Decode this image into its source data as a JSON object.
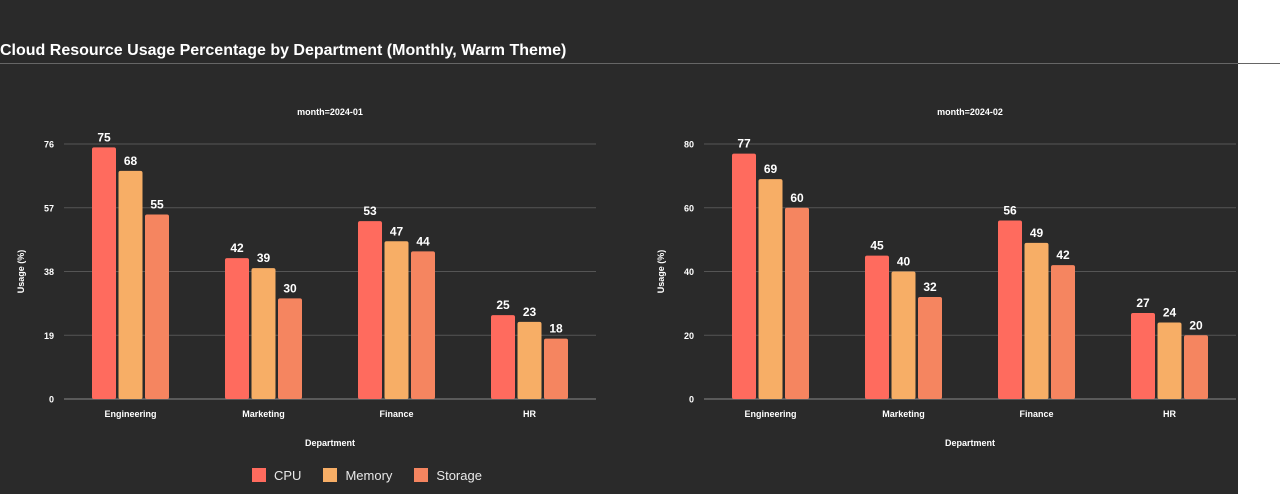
{
  "title": "Cloud Resource Usage Percentage by Department (Monthly, Warm Theme)",
  "chart_data": [
    {
      "type": "bar",
      "panel_title": "month=2024-01",
      "xlabel": "Department",
      "ylabel": "Usage (%)",
      "categories": [
        "Engineering",
        "Marketing",
        "Finance",
        "HR"
      ],
      "ylim": [
        0,
        76
      ],
      "yticks": [
        0,
        19,
        38,
        57,
        76
      ],
      "series": [
        {
          "name": "CPU",
          "color": "#ff6b5e",
          "values": [
            75,
            42,
            53,
            25
          ]
        },
        {
          "name": "Memory",
          "color": "#f7ae66",
          "values": [
            68,
            39,
            47,
            23
          ]
        },
        {
          "name": "Storage",
          "color": "#f58560",
          "values": [
            55,
            30,
            44,
            18
          ]
        }
      ]
    },
    {
      "type": "bar",
      "panel_title": "month=2024-02",
      "xlabel": "Department",
      "ylabel": "Usage (%)",
      "categories": [
        "Engineering",
        "Marketing",
        "Finance",
        "HR"
      ],
      "ylim": [
        0,
        80
      ],
      "yticks": [
        0,
        20,
        40,
        60,
        80
      ],
      "series": [
        {
          "name": "CPU",
          "color": "#ff6b5e",
          "values": [
            77,
            45,
            56,
            27
          ]
        },
        {
          "name": "Memory",
          "color": "#f7ae66",
          "values": [
            69,
            40,
            49,
            24
          ]
        },
        {
          "name": "Storage",
          "color": "#f58560",
          "values": [
            60,
            32,
            42,
            20
          ]
        }
      ]
    }
  ],
  "legend": {
    "position": "bottom",
    "items": [
      {
        "label": "CPU",
        "color": "#ff6b5e"
      },
      {
        "label": "Memory",
        "color": "#f7ae66"
      },
      {
        "label": "Storage",
        "color": "#f58560"
      }
    ]
  }
}
